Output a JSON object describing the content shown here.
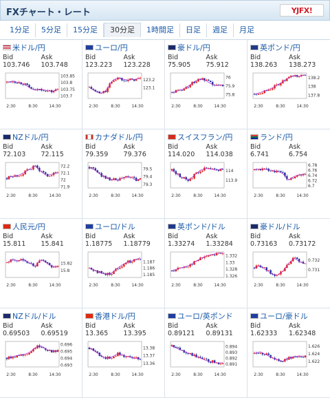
{
  "header": {
    "title": "FXチャート・レート",
    "logo_text": "YJFX!"
  },
  "tabs": [
    {
      "label": "1分足",
      "active": false
    },
    {
      "label": "5分足",
      "active": false
    },
    {
      "label": "15分足",
      "active": false
    },
    {
      "label": "30分足",
      "active": true
    },
    {
      "label": "1時間足",
      "active": false
    },
    {
      "label": "日足",
      "active": false
    },
    {
      "label": "週足",
      "active": false
    },
    {
      "label": "月足",
      "active": false
    }
  ],
  "colors": {
    "up": "#e01a1a",
    "down": "#1c2f9c",
    "ma": "#b533c8",
    "link": "#1a5aa8"
  },
  "bid_label": "Bid",
  "ask_label": "Ask",
  "pairs": [
    {
      "name": "米ドル/円",
      "bid": "103.746",
      "ask": "103.748",
      "flag": "us-flag",
      "chart_data": {
        "type": "candlestick",
        "xlabels": [
          "2:30",
          "8:30",
          "14:30"
        ],
        "yticks": [
          "103.85",
          "103.8",
          "103.75",
          "103.7"
        ],
        "ylim": [
          103.68,
          103.87
        ],
        "trend": [
          103.8,
          103.81,
          103.8,
          103.79,
          103.76,
          103.74,
          103.75,
          103.74,
          103.73,
          103.75
        ]
      }
    },
    {
      "name": "ユーロ/円",
      "bid": "123.223",
      "ask": "123.228",
      "flag": "eu-flag",
      "chart_data": {
        "type": "candlestick",
        "xlabels": [
          "2:30",
          "8:30",
          "14:30"
        ],
        "yticks": [
          "123.2",
          "123.1"
        ],
        "ylim": [
          122.96,
          123.28
        ],
        "trend": [
          123.1,
          123.05,
          123.02,
          123.06,
          123.18,
          123.22,
          123.2,
          123.19,
          123.2,
          123.21
        ]
      }
    },
    {
      "name": "豪ドル/円",
      "bid": "75.905",
      "ask": "75.912",
      "flag": "au-flag",
      "chart_data": {
        "type": "candlestick",
        "xlabels": [
          "2:30",
          "8:30",
          "14:30"
        ],
        "yticks": [
          "76",
          "75.9",
          "75.8"
        ],
        "ylim": [
          75.75,
          76.05
        ],
        "trend": [
          75.82,
          75.84,
          75.86,
          75.9,
          75.95,
          75.98,
          75.96,
          75.92,
          75.9,
          75.91
        ]
      }
    },
    {
      "name": "英ポンド/円",
      "bid": "138.263",
      "ask": "138.273",
      "flag": "uk-flag",
      "chart_data": {
        "type": "candlestick",
        "xlabels": [
          "2:30",
          "8:30",
          "14:30"
        ],
        "yticks": [
          "138.2",
          "138",
          "137.8"
        ],
        "ylim": [
          137.72,
          138.3
        ],
        "trend": [
          137.82,
          137.85,
          137.9,
          137.95,
          138.02,
          138.1,
          138.18,
          138.24,
          138.22,
          138.26
        ]
      }
    },
    {
      "name": "NZドル/円",
      "bid": "72.103",
      "ask": "72.115",
      "flag": "nz-flag",
      "chart_data": {
        "type": "candlestick",
        "xlabels": [
          "2:30",
          "8:30",
          "14:30"
        ],
        "yticks": [
          "72.2",
          "72.1",
          "72",
          "71.9"
        ],
        "ylim": [
          71.88,
          72.25
        ],
        "trend": [
          72.02,
          72.05,
          72.06,
          72.1,
          72.15,
          72.2,
          72.12,
          72.06,
          72.08,
          72.1
        ]
      }
    },
    {
      "name": "カナダドル/円",
      "bid": "79.359",
      "ask": "79.376",
      "flag": "ca-flag",
      "chart_data": {
        "type": "candlestick",
        "xlabels": [
          "2:30",
          "8:30",
          "14:30"
        ],
        "yticks": [
          "79.5",
          "79.4",
          "79.3"
        ],
        "ylim": [
          79.25,
          79.58
        ],
        "trend": [
          79.52,
          79.48,
          79.42,
          79.38,
          79.36,
          79.35,
          79.38,
          79.4,
          79.36,
          79.36
        ]
      }
    },
    {
      "name": "スイスフラン/円",
      "bid": "114.020",
      "ask": "114.038",
      "flag": "ch-flag",
      "chart_data": {
        "type": "candlestick",
        "xlabels": [
          "2:30",
          "8:30",
          "14:30"
        ],
        "yticks": [
          "114",
          "113.9"
        ],
        "ylim": [
          113.82,
          114.08
        ],
        "trend": [
          114.0,
          113.96,
          113.92,
          113.9,
          113.95,
          114.0,
          114.02,
          114.01,
          114.0,
          114.02
        ]
      }
    },
    {
      "name": "ランド/円",
      "bid": "6.741",
      "ask": "6.754",
      "flag": "za-flag",
      "chart_data": {
        "type": "candlestick",
        "xlabels": [
          "2:30",
          "8:30",
          "14:30"
        ],
        "yticks": [
          "6.78",
          "6.76",
          "6.74",
          "6.72",
          "6.7"
        ],
        "ylim": [
          6.69,
          6.79
        ],
        "trend": [
          6.76,
          6.765,
          6.762,
          6.76,
          6.755,
          6.748,
          6.72,
          6.735,
          6.742,
          6.745
        ]
      }
    },
    {
      "name": "人民元/円",
      "bid": "15.811",
      "ask": "15.841",
      "flag": "cn-flag",
      "chart_data": {
        "type": "candlestick",
        "xlabels": [
          "2:30",
          "8:30",
          "14:30"
        ],
        "yticks": [
          "15.82",
          "15.8"
        ],
        "ylim": [
          15.78,
          15.85
        ],
        "trend": [
          15.82,
          15.83,
          15.825,
          15.83,
          15.82,
          15.81,
          15.83,
          15.82,
          15.81,
          15.81
        ]
      }
    },
    {
      "name": "ユーロ/ドル",
      "bid": "1.18775",
      "ask": "1.18779",
      "flag": "eu-us-flag",
      "chart_data": {
        "type": "candlestick",
        "xlabels": [
          "2:30",
          "8:30",
          "14:30"
        ],
        "yticks": [
          "1.187",
          "1.186",
          "1.185"
        ],
        "ylim": [
          1.1845,
          1.1885
        ],
        "trend": [
          1.186,
          1.1856,
          1.1852,
          1.185,
          1.1852,
          1.186,
          1.1866,
          1.187,
          1.1872,
          1.1876
        ]
      }
    },
    {
      "name": "英ポンド/ドル",
      "bid": "1.33274",
      "ask": "1.33284",
      "flag": "uk-us-flag",
      "chart_data": {
        "type": "candlestick",
        "xlabels": [
          "2:30",
          "8:30",
          "14:30"
        ],
        "yticks": [
          "1.332",
          "1.33",
          "1.328",
          "1.326"
        ],
        "ylim": [
          1.3255,
          1.333
        ],
        "trend": [
          1.3275,
          1.328,
          1.3285,
          1.329,
          1.33,
          1.331,
          1.3318,
          1.3322,
          1.3326,
          1.3327
        ]
      }
    },
    {
      "name": "豪ドル/ドル",
      "bid": "0.73163",
      "ask": "0.73172",
      "flag": "au-us-flag",
      "chart_data": {
        "type": "candlestick",
        "xlabels": [
          "2:30",
          "8:30",
          "14:30"
        ],
        "yticks": [
          "0.732",
          "0.731"
        ],
        "ylim": [
          0.7302,
          0.7328
        ],
        "trend": [
          0.7312,
          0.7314,
          0.731,
          0.7306,
          0.7304,
          0.7308,
          0.7316,
          0.7322,
          0.7318,
          0.7316
        ]
      }
    },
    {
      "name": "NZドル/ドル",
      "bid": "0.69503",
      "ask": "0.69519",
      "flag": "nz-us-flag",
      "chart_data": {
        "type": "candlestick",
        "xlabels": [
          "2:30",
          "8:30",
          "14:30"
        ],
        "yticks": [
          "0.696",
          "0.695",
          "0.694",
          "0.693"
        ],
        "ylim": [
          0.6927,
          0.6964
        ],
        "trend": [
          0.694,
          0.6942,
          0.6944,
          0.6945,
          0.6948,
          0.6955,
          0.6958,
          0.6952,
          0.695,
          0.695
        ]
      }
    },
    {
      "name": "香港ドル/円",
      "bid": "13.365",
      "ask": "13.395",
      "flag": "hk-flag",
      "chart_data": {
        "type": "candlestick",
        "xlabels": [
          "2:30",
          "8:30",
          "14:30"
        ],
        "yticks": [
          "13.38",
          "13.37",
          "13.36"
        ],
        "ylim": [
          13.355,
          13.388
        ],
        "trend": [
          13.38,
          13.375,
          13.37,
          13.366,
          13.368,
          13.372,
          13.37,
          13.368,
          13.366,
          13.366
        ]
      }
    },
    {
      "name": "ユーロ/英ポンド",
      "bid": "0.89121",
      "ask": "0.89131",
      "flag": "eu-uk-flag",
      "chart_data": {
        "type": "candlestick",
        "xlabels": [
          "2:30",
          "8:30",
          "14:30"
        ],
        "yticks": [
          "0.894",
          "0.893",
          "0.892",
          "0.891"
        ],
        "ylim": [
          0.8905,
          0.8948
        ],
        "trend": [
          0.894,
          0.8936,
          0.8932,
          0.8928,
          0.8924,
          0.892,
          0.8916,
          0.8914,
          0.8912,
          0.8912
        ]
      }
    },
    {
      "name": "ユーロ/豪ドル",
      "bid": "1.62333",
      "ask": "1.62348",
      "flag": "eu-au-flag",
      "chart_data": {
        "type": "candlestick",
        "xlabels": [
          "2:30",
          "8:30",
          "14:30"
        ],
        "yticks": [
          "1.626",
          "1.624",
          "1.622"
        ],
        "ylim": [
          1.6205,
          1.6272
        ],
        "trend": [
          1.624,
          1.6245,
          1.6238,
          1.623,
          1.6225,
          1.622,
          1.6228,
          1.6232,
          1.6234,
          1.6233
        ]
      }
    }
  ]
}
